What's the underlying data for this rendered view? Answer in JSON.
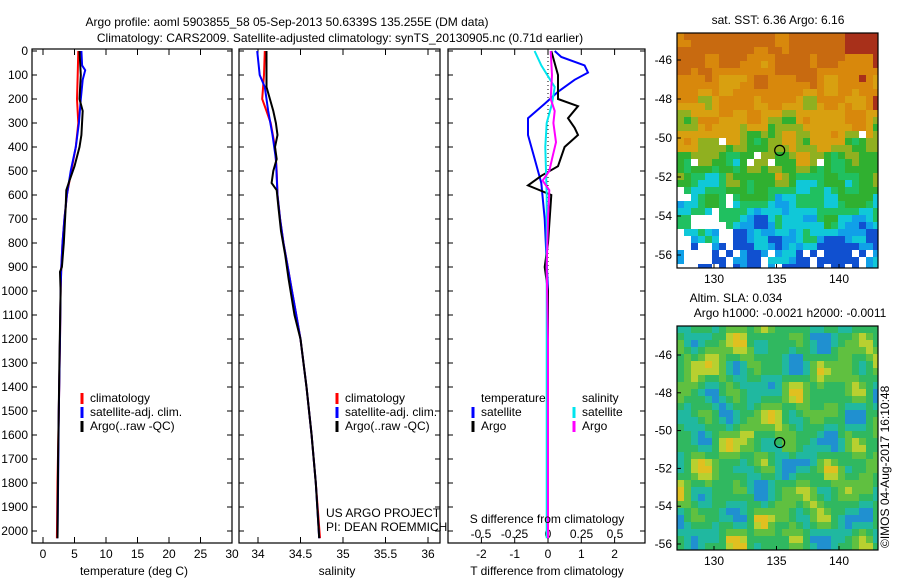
{
  "title": {
    "line1": "Argo profile: aoml 5903855_58 05-Sep-2013 50.6339S 135.255E (DM data)",
    "line2": "Climatology: CARS2009. Satellite-adjusted climatology: synTS_20130905.nc (0.71d earlier)"
  },
  "colors": {
    "climatology": "#ff0000",
    "satellite": "#0000ff",
    "argo": "#000000",
    "sat_salinity": "#00e5ee",
    "argo_salinity": "#ff00ff"
  },
  "chart_data": [
    {
      "type": "line",
      "id": "temperature",
      "xlabel": "temperature (deg C)",
      "ylabel": "",
      "xlim": [
        -1.5,
        31
      ],
      "ylim": [
        2050,
        0
      ],
      "x_ticks": [
        "0",
        "5",
        "10",
        "15",
        "20",
        "25",
        "30"
      ],
      "y_ticks": [
        "0",
        "100",
        "200",
        "300",
        "400",
        "500",
        "600",
        "700",
        "800",
        "900",
        "1000",
        "1100",
        "1200",
        "1300",
        "1400",
        "1500",
        "1600",
        "1700",
        "1800",
        "1900",
        "2000"
      ],
      "legend": [
        "climatology",
        "satellite-adj. clim.",
        "Argo(..raw -QC)"
      ],
      "series": [
        {
          "name": "climatology",
          "color": "#ff0000",
          "points": [
            [
              5.6,
              0
            ],
            [
              5.5,
              100
            ],
            [
              5.4,
              200
            ],
            [
              5.6,
              300
            ],
            [
              5.2,
              400
            ],
            [
              4.5,
              500
            ],
            [
              3.8,
              600
            ],
            [
              3.4,
              700
            ],
            [
              3.1,
              800
            ],
            [
              2.9,
              900
            ],
            [
              2.8,
              1000
            ],
            [
              2.7,
              1200
            ],
            [
              2.5,
              1500
            ],
            [
              2.3,
              1800
            ],
            [
              2.2,
              2030
            ]
          ]
        },
        {
          "name": "satellite-adj. clim.",
          "color": "#0000ff",
          "points": [
            [
              6.1,
              0
            ],
            [
              6.2,
              60
            ],
            [
              6.7,
              80
            ],
            [
              6.3,
              120
            ],
            [
              6.0,
              200
            ],
            [
              5.7,
              300
            ],
            [
              5.2,
              400
            ],
            [
              4.4,
              500
            ],
            [
              3.8,
              600
            ],
            [
              3.4,
              700
            ],
            [
              3.1,
              800
            ],
            [
              2.9,
              900
            ],
            [
              2.8,
              1000
            ],
            [
              2.7,
              1200
            ],
            [
              2.5,
              1500
            ],
            [
              2.4,
              1800
            ],
            [
              2.3,
              2030
            ]
          ]
        },
        {
          "name": "Argo(..raw -QC)",
          "color": "#000000",
          "points": [
            [
              5.8,
              0
            ],
            [
              6.0,
              100
            ],
            [
              5.8,
              200
            ],
            [
              6.3,
              250
            ],
            [
              6.1,
              350
            ],
            [
              5.8,
              400
            ],
            [
              5.0,
              480
            ],
            [
              4.2,
              540
            ],
            [
              3.7,
              580
            ],
            [
              3.6,
              650
            ],
            [
              3.3,
              800
            ],
            [
              3.0,
              900
            ],
            [
              2.7,
              920
            ],
            [
              2.8,
              1000
            ],
            [
              2.6,
              1300
            ],
            [
              2.4,
              1700
            ],
            [
              2.3,
              2030
            ]
          ]
        }
      ]
    },
    {
      "type": "line",
      "id": "salinity",
      "xlabel": "salinity",
      "xlim": [
        33.78,
        36.1
      ],
      "ylim": [
        2050,
        0
      ],
      "x_ticks": [
        "34",
        "34.5",
        "35",
        "35.5",
        "36"
      ],
      "legend": [
        "climatology",
        "satellite-adj. clim.",
        "Argo(..raw -QC)"
      ],
      "annotation": [
        "US ARGO PROJECT",
        "PI: DEAN ROEMMICH"
      ],
      "series": [
        {
          "name": "climatology",
          "color": "#ff0000",
          "points": [
            [
              34.08,
              0
            ],
            [
              34.07,
              100
            ],
            [
              34.05,
              200
            ],
            [
              34.1,
              250
            ],
            [
              34.15,
              300
            ],
            [
              34.2,
              400
            ],
            [
              34.22,
              500
            ],
            [
              34.23,
              600
            ],
            [
              34.26,
              700
            ],
            [
              34.3,
              800
            ],
            [
              34.35,
              900
            ],
            [
              34.4,
              1000
            ],
            [
              34.45,
              1100
            ],
            [
              34.5,
              1200
            ],
            [
              34.57,
              1400
            ],
            [
              34.63,
              1600
            ],
            [
              34.68,
              1800
            ],
            [
              34.73,
              2030
            ]
          ]
        },
        {
          "name": "satellite-adj. clim.",
          "color": "#0000ff",
          "points": [
            [
              33.99,
              0
            ],
            [
              34.02,
              100
            ],
            [
              34.08,
              150
            ],
            [
              34.12,
              250
            ],
            [
              34.17,
              350
            ],
            [
              34.21,
              450
            ],
            [
              34.23,
              600
            ],
            [
              34.26,
              700
            ],
            [
              34.3,
              800
            ],
            [
              34.35,
              900
            ],
            [
              34.4,
              1000
            ],
            [
              34.45,
              1100
            ],
            [
              34.5,
              1200
            ],
            [
              34.57,
              1400
            ],
            [
              34.63,
              1600
            ],
            [
              34.68,
              1800
            ],
            [
              34.72,
              2030
            ]
          ]
        },
        {
          "name": "Argo(..raw -QC)",
          "color": "#000000",
          "points": [
            [
              34.1,
              0
            ],
            [
              34.1,
              150
            ],
            [
              34.14,
              200
            ],
            [
              34.18,
              250
            ],
            [
              34.21,
              300
            ],
            [
              34.23,
              350
            ],
            [
              34.2,
              400
            ],
            [
              34.22,
              450
            ],
            [
              34.18,
              500
            ],
            [
              34.16,
              550
            ],
            [
              34.22,
              580
            ],
            [
              34.24,
              650
            ],
            [
              34.27,
              750
            ],
            [
              34.32,
              850
            ],
            [
              34.36,
              950
            ],
            [
              34.43,
              1100
            ],
            [
              34.5,
              1200
            ],
            [
              34.57,
              1400
            ],
            [
              34.63,
              1600
            ],
            [
              34.68,
              1800
            ],
            [
              34.72,
              2030
            ]
          ]
        }
      ]
    },
    {
      "type": "line",
      "id": "difference",
      "xlabel": "T difference from climatology",
      "x2label": "S difference from climatology",
      "xlim": [
        -3,
        2.9
      ],
      "ylim": [
        2050,
        0
      ],
      "x_ticks": [
        "-2",
        "-1",
        "0",
        "1",
        "2"
      ],
      "x2_ticks": [
        "-0.5",
        "-0.25",
        "0",
        "0.25",
        "0.5"
      ],
      "legend": {
        "temperature_header": "temperature",
        "salinity_header": "salinity",
        "items": [
          "satellite",
          "Argo",
          "satellite",
          "Argo"
        ]
      },
      "series": [
        {
          "name": "temperature satellite",
          "units": "T",
          "color": "#0000ff",
          "points": [
            [
              0.2,
              0
            ],
            [
              0.4,
              25
            ],
            [
              1.1,
              60
            ],
            [
              1.2,
              90
            ],
            [
              0.8,
              120
            ],
            [
              0.3,
              170
            ],
            [
              -0.1,
              220
            ],
            [
              -0.6,
              280
            ],
            [
              -0.6,
              350
            ],
            [
              -0.4,
              450
            ],
            [
              -0.2,
              550
            ],
            [
              -0.1,
              700
            ],
            [
              0,
              1000
            ],
            [
              0,
              2030
            ]
          ]
        },
        {
          "name": "temperature Argo",
          "units": "T",
          "color": "#000000",
          "points": [
            [
              0.1,
              0
            ],
            [
              0.3,
              100
            ],
            [
              0.3,
              200
            ],
            [
              0.9,
              230
            ],
            [
              0.6,
              280
            ],
            [
              0.8,
              320
            ],
            [
              0.9,
              350
            ],
            [
              0.5,
              400
            ],
            [
              0.3,
              480
            ],
            [
              -0.2,
              520
            ],
            [
              -0.6,
              560
            ],
            [
              0.1,
              600
            ],
            [
              0,
              800
            ],
            [
              -0.1,
              900
            ],
            [
              0,
              1000
            ],
            [
              0,
              2030
            ]
          ]
        },
        {
          "name": "salinity satellite",
          "units": "S",
          "color": "#00e5ee",
          "points": [
            [
              -0.1,
              0
            ],
            [
              -0.05,
              60
            ],
            [
              0.05,
              150
            ],
            [
              0.03,
              220
            ],
            [
              -0.01,
              300
            ],
            [
              -0.02,
              400
            ],
            [
              -0.01,
              600
            ],
            [
              -0.01,
              2030
            ]
          ]
        },
        {
          "name": "salinity Argo",
          "units": "S",
          "color": "#ff00ff",
          "points": [
            [
              0.02,
              0
            ],
            [
              0.03,
              100
            ],
            [
              0.02,
              200
            ],
            [
              0.05,
              250
            ],
            [
              0.04,
              300
            ],
            [
              0.06,
              380
            ],
            [
              0.03,
              450
            ],
            [
              0.01,
              500
            ],
            [
              -0.04,
              540
            ],
            [
              0.01,
              580
            ],
            [
              0,
              700
            ],
            [
              -0.01,
              900
            ],
            [
              0,
              1200
            ],
            [
              0,
              2030
            ]
          ]
        }
      ]
    }
  ],
  "maps": [
    {
      "title": "sat. SST: 6.36 Argo: 6.16",
      "lat_ticks": [
        "-46",
        "-48",
        "-50",
        "-52",
        "-54",
        "-56"
      ],
      "lon_ticks": [
        "130",
        "135",
        "140"
      ],
      "float_lon": 135.255,
      "float_lat": -50.6339
    },
    {
      "title_line1": "Altim. SLA: 0.034",
      "title_line2": "Argo h1000: -0.0021 h2000: -0.0011",
      "lat_ticks": [
        "-46",
        "-48",
        "-50",
        "-52",
        "-54",
        "-56"
      ],
      "lon_ticks": [
        "130",
        "135",
        "140"
      ],
      "float_lon": 135.255,
      "float_lat": -50.6339
    }
  ],
  "stamp": "©IMOS 04-Aug-2017 16:10:48"
}
